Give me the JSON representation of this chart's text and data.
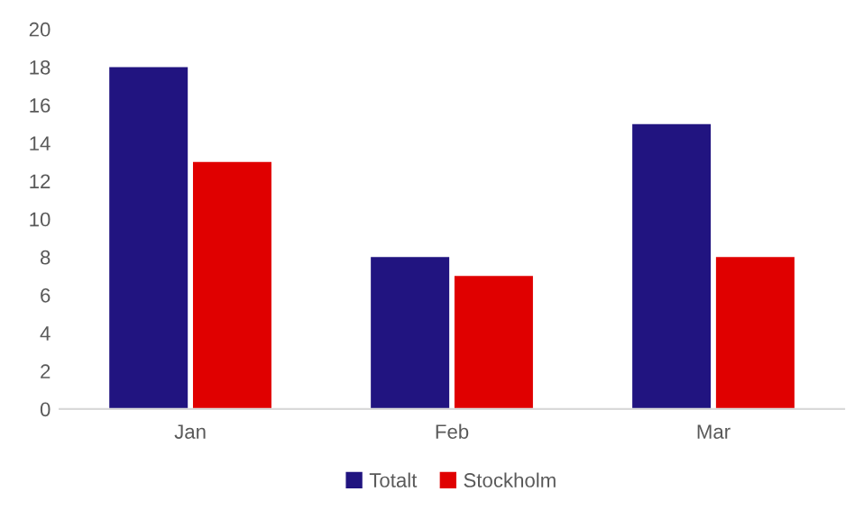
{
  "chart_data": {
    "type": "bar",
    "categories": [
      "Jan",
      "Feb",
      "Mar"
    ],
    "series": [
      {
        "name": "Totalt",
        "color": "#211480",
        "values": [
          18,
          8,
          15
        ]
      },
      {
        "name": "Stockholm",
        "color": "#e00000",
        "values": [
          13,
          7,
          8
        ]
      }
    ],
    "ylim": [
      0,
      20
    ],
    "yticks": [
      0,
      2,
      4,
      6,
      8,
      10,
      12,
      14,
      16,
      18,
      20
    ],
    "grid": false,
    "legend": "bottom"
  }
}
